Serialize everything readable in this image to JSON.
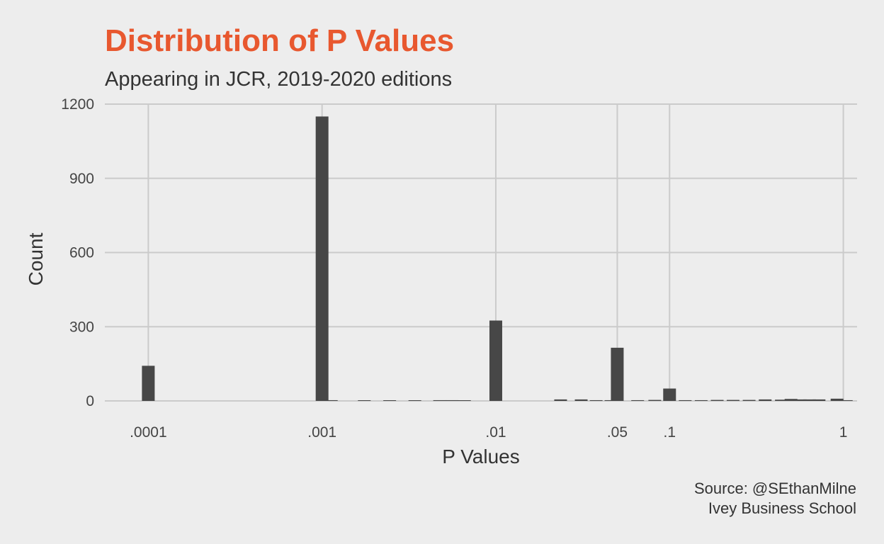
{
  "colors": {
    "title": "#e8582f",
    "bar": "#474747",
    "grid": "#cbcbcb",
    "background": "#ededed"
  },
  "caption": {
    "line1": "Source: @SEthanMilne",
    "line2": "Ivey Business School"
  },
  "chart_data": {
    "type": "bar",
    "title": "Distribution of P Values",
    "subtitle": "Appearing in JCR, 2019-2020 editions",
    "xlabel": "P Values",
    "ylabel": "Count",
    "x_scale": "log10",
    "xlim": [
      5.62e-05,
      1.2
    ],
    "ylim": [
      0,
      1200
    ],
    "grid": true,
    "x_ticks": [
      {
        "value": 0.0001,
        "label": ".0001"
      },
      {
        "value": 0.001,
        "label": ".001"
      },
      {
        "value": 0.01,
        "label": ".01"
      },
      {
        "value": 0.05,
        "label": ".05"
      },
      {
        "value": 0.1,
        "label": ".1"
      },
      {
        "value": 1,
        "label": "1"
      }
    ],
    "y_ticks": [
      {
        "value": 0,
        "label": "0"
      },
      {
        "value": 300,
        "label": "300"
      },
      {
        "value": 600,
        "label": "600"
      },
      {
        "value": 900,
        "label": "900"
      },
      {
        "value": 1200,
        "label": "1200"
      }
    ],
    "bars": [
      {
        "x": 0.0001,
        "count": 142
      },
      {
        "x": 0.001,
        "count": 1150
      },
      {
        "x": 0.00113,
        "count": 3
      },
      {
        "x": 0.00175,
        "count": 2
      },
      {
        "x": 0.00245,
        "count": 2
      },
      {
        "x": 0.00342,
        "count": 2
      },
      {
        "x": 0.00475,
        "count": 3
      },
      {
        "x": 0.0056,
        "count": 3
      },
      {
        "x": 0.0066,
        "count": 2
      },
      {
        "x": 0.01,
        "count": 325
      },
      {
        "x": 0.0236,
        "count": 6
      },
      {
        "x": 0.031,
        "count": 6
      },
      {
        "x": 0.0378,
        "count": 3
      },
      {
        "x": 0.046,
        "count": 3
      },
      {
        "x": 0.05,
        "count": 215
      },
      {
        "x": 0.0655,
        "count": 3
      },
      {
        "x": 0.0822,
        "count": 4
      },
      {
        "x": 0.1,
        "count": 50
      },
      {
        "x": 0.123,
        "count": 3
      },
      {
        "x": 0.152,
        "count": 3
      },
      {
        "x": 0.188,
        "count": 4
      },
      {
        "x": 0.232,
        "count": 4
      },
      {
        "x": 0.287,
        "count": 4
      },
      {
        "x": 0.355,
        "count": 6
      },
      {
        "x": 0.44,
        "count": 5
      },
      {
        "x": 0.5,
        "count": 8
      },
      {
        "x": 0.565,
        "count": 6
      },
      {
        "x": 0.64,
        "count": 6
      },
      {
        "x": 0.725,
        "count": 6
      },
      {
        "x": 0.92,
        "count": 9
      },
      {
        "x": 1.04,
        "count": 3
      }
    ]
  }
}
